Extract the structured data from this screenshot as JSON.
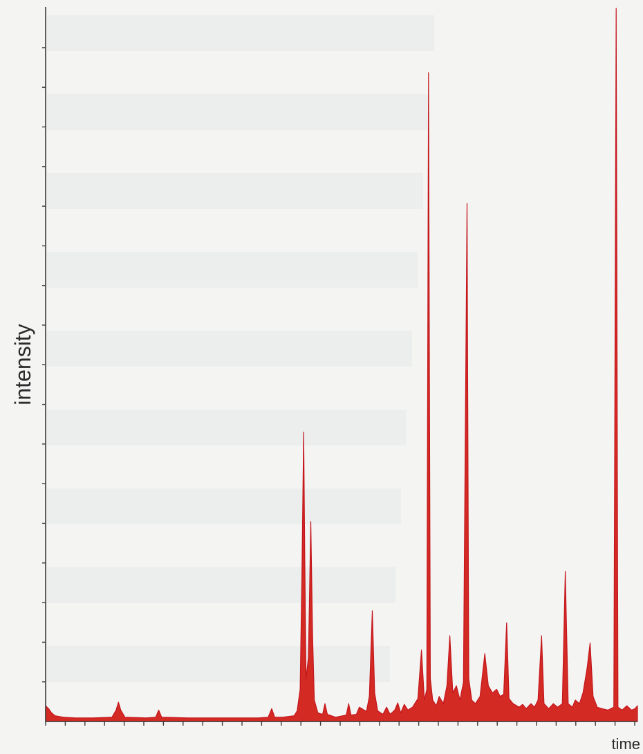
{
  "chart_data": {
    "type": "area",
    "title": "",
    "xlabel": "time",
    "ylabel": "intensity",
    "xlim": [
      0,
      100
    ],
    "ylim": [
      0,
      100
    ],
    "grid": false,
    "legend": "none",
    "colors": {
      "fill": "#d42a24",
      "stroke": "#c4161c",
      "axis": "#3a3a3a",
      "background": "#f4f4f3",
      "band": "#e6e9ea"
    },
    "series": [
      {
        "values": [
          [
            0,
            2.2
          ],
          [
            0.5,
            1.8
          ],
          [
            1,
            1.2
          ],
          [
            1.6,
            0.8
          ],
          [
            3,
            0.6
          ],
          [
            5,
            0.5
          ],
          [
            8,
            0.5
          ],
          [
            11.2,
            0.6
          ],
          [
            11.9,
            1.6
          ],
          [
            12.3,
            2.7
          ],
          [
            12.7,
            1.6
          ],
          [
            13.4,
            0.6
          ],
          [
            17,
            0.5
          ],
          [
            18.6,
            0.6
          ],
          [
            19.1,
            1.6
          ],
          [
            19.6,
            0.6
          ],
          [
            24,
            0.5
          ],
          [
            30,
            0.5
          ],
          [
            36,
            0.5
          ],
          [
            37.6,
            0.6
          ],
          [
            38.2,
            1.8
          ],
          [
            38.7,
            0.6
          ],
          [
            40,
            0.6
          ],
          [
            42,
            0.8
          ],
          [
            42.5,
            1.5
          ],
          [
            43,
            4.5
          ],
          [
            43.3,
            20
          ],
          [
            43.6,
            40.5
          ],
          [
            43.8,
            22
          ],
          [
            44.0,
            6
          ],
          [
            44.4,
            9
          ],
          [
            44.8,
            28
          ],
          [
            45.1,
            12
          ],
          [
            45.4,
            3
          ],
          [
            46,
            1.2
          ],
          [
            46.8,
            1.0
          ],
          [
            47.2,
            2.5
          ],
          [
            47.6,
            1.0
          ],
          [
            49,
            0.6
          ],
          [
            50.8,
            0.9
          ],
          [
            51.2,
            2.5
          ],
          [
            51.6,
            0.9
          ],
          [
            52.5,
            1.0
          ],
          [
            53,
            2.0
          ],
          [
            54.2,
            1.4
          ],
          [
            54.7,
            3.5
          ],
          [
            55.2,
            15.5
          ],
          [
            55.6,
            4
          ],
          [
            56.1,
            1.5
          ],
          [
            57,
            1.0
          ],
          [
            57.6,
            2.0
          ],
          [
            58.2,
            1.0
          ],
          [
            59,
            1.6
          ],
          [
            59.5,
            2.6
          ],
          [
            60,
            1.2
          ],
          [
            60.6,
            2.4
          ],
          [
            61.2,
            1.6
          ],
          [
            62,
            2.0
          ],
          [
            62.9,
            3.2
          ],
          [
            63.5,
            10
          ],
          [
            64,
            3.0
          ],
          [
            64.4,
            4.5
          ],
          [
            64.7,
            90.8
          ],
          [
            65.0,
            6
          ],
          [
            65.4,
            3
          ],
          [
            66,
            2.2
          ],
          [
            66.5,
            3.5
          ],
          [
            67.2,
            2.5
          ],
          [
            67.8,
            5
          ],
          [
            68.3,
            12
          ],
          [
            68.8,
            4
          ],
          [
            69.4,
            5
          ],
          [
            70.0,
            3
          ],
          [
            70.6,
            5.5
          ],
          [
            71.2,
            72.5
          ],
          [
            71.5,
            6
          ],
          [
            72,
            3
          ],
          [
            72.6,
            2.5
          ],
          [
            73.4,
            3.5
          ],
          [
            74.2,
            9.5
          ],
          [
            74.8,
            5.0
          ],
          [
            75.5,
            4.0
          ],
          [
            76.2,
            4.5
          ],
          [
            76.8,
            3.5
          ],
          [
            77.4,
            3.8
          ],
          [
            77.9,
            13.8
          ],
          [
            78.3,
            3.2
          ],
          [
            79,
            2.5
          ],
          [
            80,
            2.0
          ],
          [
            80.6,
            2.4
          ],
          [
            81.2,
            1.8
          ],
          [
            82,
            2.5
          ],
          [
            82.6,
            2.0
          ],
          [
            83.2,
            3.0
          ],
          [
            83.8,
            12
          ],
          [
            84.2,
            2.5
          ],
          [
            85,
            1.8
          ],
          [
            85.8,
            2.5
          ],
          [
            86.5,
            2.0
          ],
          [
            87.3,
            2.5
          ],
          [
            87.8,
            21
          ],
          [
            88.3,
            2.5
          ],
          [
            89,
            2.0
          ],
          [
            89.5,
            3.0
          ],
          [
            90.2,
            2.5
          ],
          [
            90.8,
            4.0
          ],
          [
            91.5,
            7.5
          ],
          [
            92.0,
            11
          ],
          [
            92.5,
            3.5
          ],
          [
            93.2,
            2.0
          ],
          [
            94,
            1.8
          ],
          [
            95,
            1.6
          ],
          [
            96,
            2.0
          ],
          [
            96.4,
            99.8
          ],
          [
            96.7,
            2.0
          ],
          [
            97.4,
            1.6
          ],
          [
            98.2,
            2.2
          ],
          [
            99,
            1.6
          ],
          [
            99.6,
            1.8
          ],
          [
            100,
            2.2
          ]
        ]
      }
    ]
  }
}
